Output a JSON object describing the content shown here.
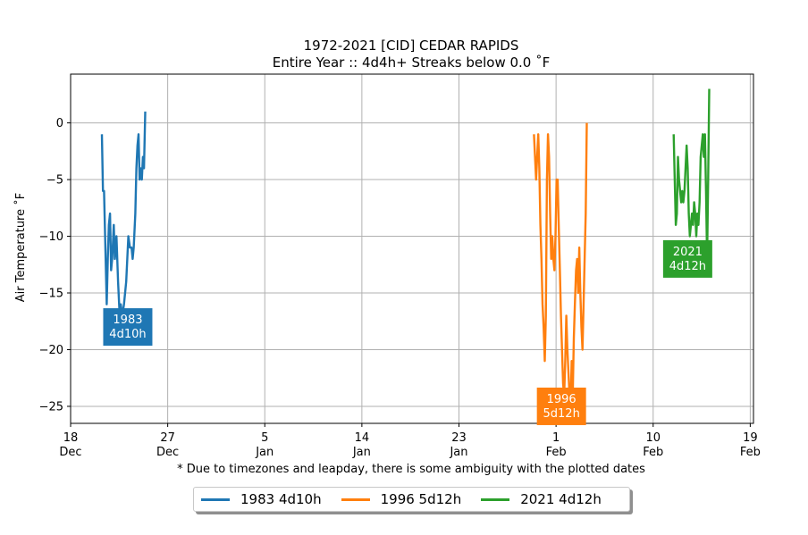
{
  "chart_data": {
    "type": "line",
    "title": "1972-2021 [CID] CEDAR RAPIDS",
    "subtitle": "Entire Year :: 4d4h+ Streaks below 0.0 ˚F",
    "ylabel": "Air Temperature ˚F",
    "xlabel": "* Due to timezones and leapday, there is some ambiguity with the plotted dates",
    "ylim": [
      -26.5,
      4.3
    ],
    "yticks": [
      0,
      -5,
      -10,
      -15,
      -20,
      -25
    ],
    "ytick_labels": [
      "0",
      "−5",
      "−10",
      "−15",
      "−20",
      "−25"
    ],
    "x_axis_origin": "Dec 18",
    "xlim": [
      0,
      63.3
    ],
    "xticks": [
      {
        "x": 0,
        "label": "18\nDec"
      },
      {
        "x": 9,
        "label": "27\nDec"
      },
      {
        "x": 18,
        "label": "5\nJan"
      },
      {
        "x": 27,
        "label": "14\nJan"
      },
      {
        "x": 36,
        "label": "23\nJan"
      },
      {
        "x": 45,
        "label": "1\nFeb"
      },
      {
        "x": 54,
        "label": "10\nFeb"
      },
      {
        "x": 63,
        "label": "19\nFeb"
      }
    ],
    "grid": true,
    "legend_position": "bottom",
    "series": [
      {
        "name": "1983 4d10h",
        "color": "#1f77b4",
        "annotation": "1983\n4d10h",
        "annotation_anchor": [
          5.3,
          -18
        ],
        "points": [
          [
            2.9,
            -1
          ],
          [
            3.0,
            -6
          ],
          [
            3.1,
            -6
          ],
          [
            3.25,
            -12
          ],
          [
            3.35,
            -16
          ],
          [
            3.45,
            -12
          ],
          [
            3.55,
            -9
          ],
          [
            3.65,
            -8
          ],
          [
            3.75,
            -13
          ],
          [
            3.85,
            -12
          ],
          [
            4.0,
            -9
          ],
          [
            4.1,
            -12
          ],
          [
            4.25,
            -10
          ],
          [
            4.4,
            -14
          ],
          [
            4.55,
            -17
          ],
          [
            4.65,
            -16
          ],
          [
            4.8,
            -17
          ],
          [
            4.95,
            -16
          ],
          [
            5.15,
            -14
          ],
          [
            5.35,
            -10
          ],
          [
            5.5,
            -11
          ],
          [
            5.65,
            -11
          ],
          [
            5.75,
            -12
          ],
          [
            5.85,
            -11
          ],
          [
            6.0,
            -8
          ],
          [
            6.1,
            -4
          ],
          [
            6.2,
            -2
          ],
          [
            6.3,
            -1
          ],
          [
            6.4,
            -5
          ],
          [
            6.5,
            -4
          ],
          [
            6.6,
            -5
          ],
          [
            6.7,
            -3
          ],
          [
            6.8,
            -4
          ],
          [
            6.92,
            1
          ]
        ]
      },
      {
        "name": "1996 5d12h",
        "color": "#ff7f0e",
        "annotation": "1996\n5d12h",
        "annotation_anchor": [
          45.5,
          -25
        ],
        "points": [
          [
            42.95,
            -1
          ],
          [
            43.05,
            -3
          ],
          [
            43.15,
            -5
          ],
          [
            43.25,
            -3
          ],
          [
            43.35,
            -1
          ],
          [
            43.45,
            -4
          ],
          [
            43.55,
            -9
          ],
          [
            43.65,
            -12
          ],
          [
            43.75,
            -16
          ],
          [
            43.85,
            -18
          ],
          [
            43.95,
            -21
          ],
          [
            44.05,
            -17
          ],
          [
            44.15,
            -5
          ],
          [
            44.25,
            -1
          ],
          [
            44.35,
            -3
          ],
          [
            44.45,
            -8
          ],
          [
            44.55,
            -12
          ],
          [
            44.65,
            -10
          ],
          [
            44.75,
            -12
          ],
          [
            44.85,
            -13
          ],
          [
            44.95,
            -10
          ],
          [
            45.05,
            -5
          ],
          [
            45.15,
            -5
          ],
          [
            45.25,
            -9
          ],
          [
            45.35,
            -13
          ],
          [
            45.45,
            -17
          ],
          [
            45.55,
            -20
          ],
          [
            45.65,
            -23
          ],
          [
            45.75,
            -24
          ],
          [
            45.85,
            -21
          ],
          [
            45.95,
            -17
          ],
          [
            46.05,
            -20
          ],
          [
            46.15,
            -22
          ],
          [
            46.25,
            -24
          ],
          [
            46.35,
            -25
          ],
          [
            46.45,
            -21
          ],
          [
            46.55,
            -24
          ],
          [
            46.65,
            -19
          ],
          [
            46.75,
            -16
          ],
          [
            46.85,
            -13
          ],
          [
            46.95,
            -12
          ],
          [
            47.05,
            -15
          ],
          [
            47.15,
            -11
          ],
          [
            47.25,
            -15
          ],
          [
            47.35,
            -18
          ],
          [
            47.45,
            -20
          ],
          [
            47.55,
            -16
          ],
          [
            47.65,
            -12
          ],
          [
            47.75,
            -8
          ],
          [
            47.85,
            0
          ]
        ]
      },
      {
        "name": "2021 4d12h",
        "color": "#2ca02c",
        "annotation": "2021\n4d12h",
        "annotation_anchor": [
          57.2,
          -12
        ],
        "points": [
          [
            55.9,
            -1
          ],
          [
            56.0,
            -5
          ],
          [
            56.1,
            -9
          ],
          [
            56.2,
            -8
          ],
          [
            56.3,
            -3
          ],
          [
            56.4,
            -5
          ],
          [
            56.5,
            -6
          ],
          [
            56.6,
            -7
          ],
          [
            56.7,
            -6
          ],
          [
            56.8,
            -7
          ],
          [
            56.9,
            -6
          ],
          [
            57.0,
            -4
          ],
          [
            57.1,
            -2
          ],
          [
            57.2,
            -4
          ],
          [
            57.3,
            -8
          ],
          [
            57.4,
            -10
          ],
          [
            57.5,
            -9
          ],
          [
            57.6,
            -8
          ],
          [
            57.7,
            -9
          ],
          [
            57.8,
            -7
          ],
          [
            57.9,
            -8
          ],
          [
            58.0,
            -10
          ],
          [
            58.1,
            -8
          ],
          [
            58.2,
            -9
          ],
          [
            58.3,
            -7
          ],
          [
            58.4,
            -3
          ],
          [
            58.5,
            -2
          ],
          [
            58.6,
            -1
          ],
          [
            58.7,
            -3
          ],
          [
            58.8,
            -1
          ],
          [
            58.9,
            -6
          ],
          [
            59.0,
            -12
          ],
          [
            59.1,
            -5
          ],
          [
            59.2,
            3
          ]
        ]
      }
    ]
  }
}
